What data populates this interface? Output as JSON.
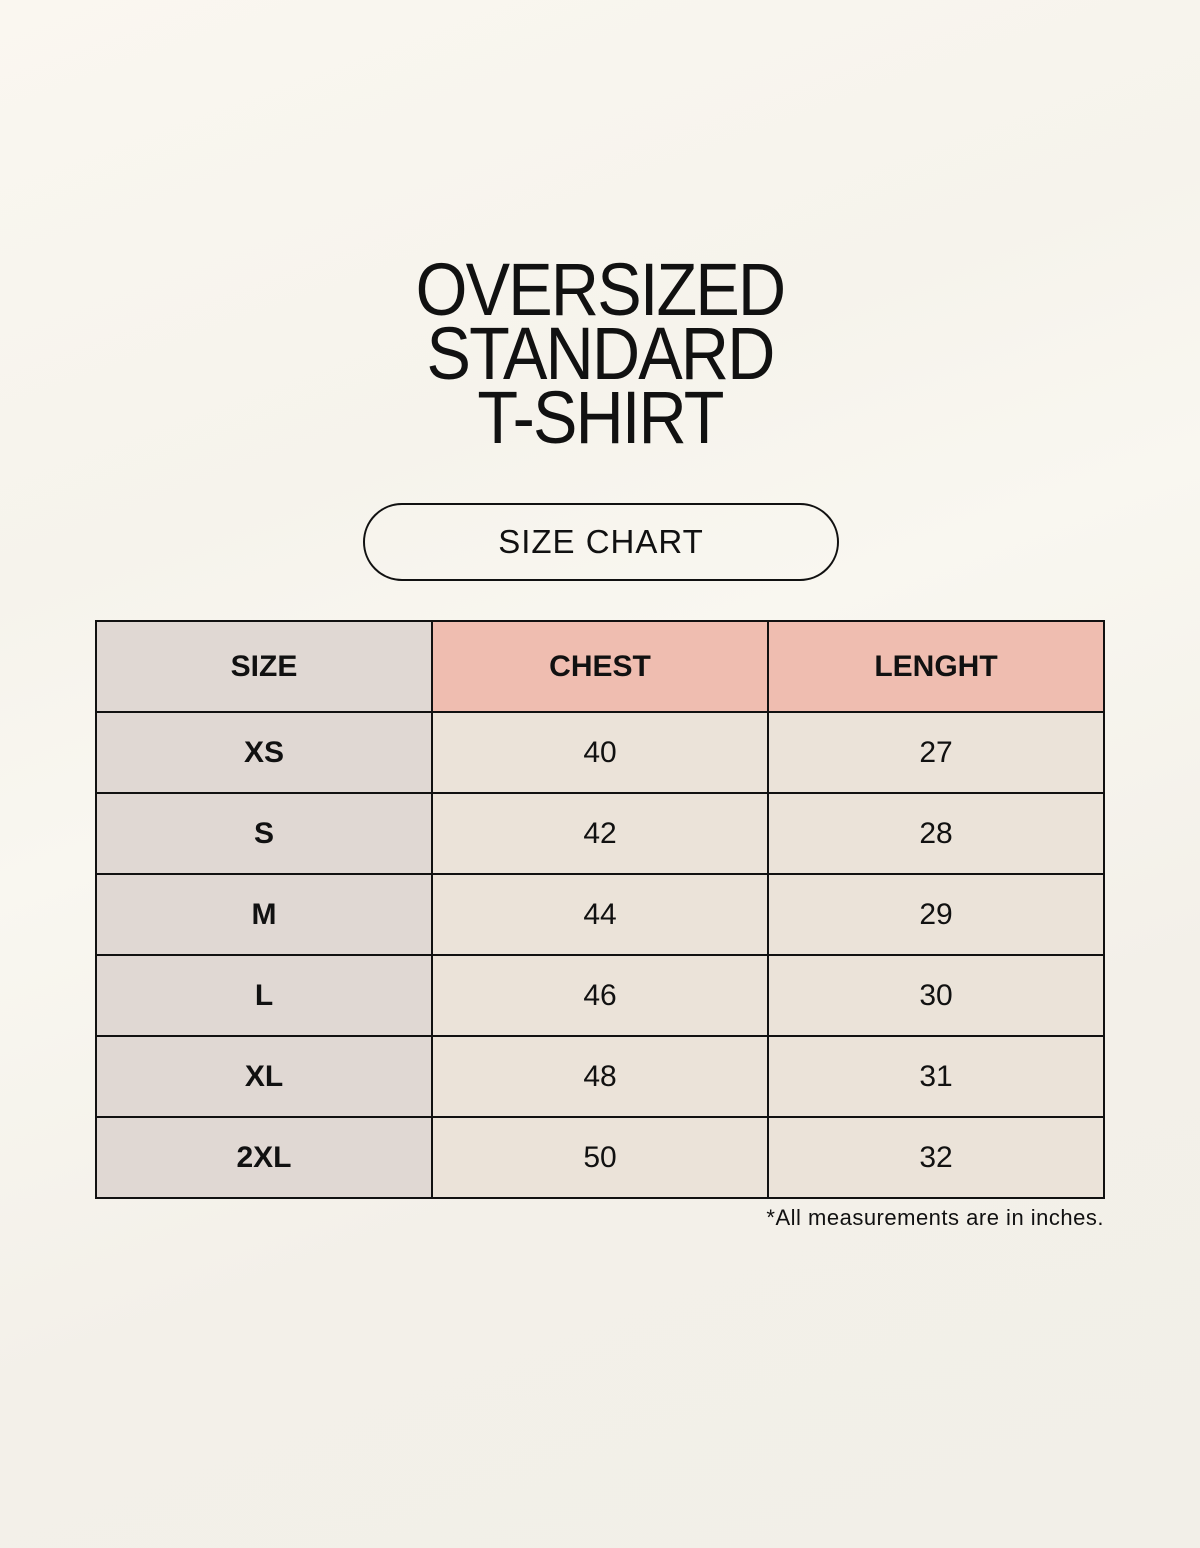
{
  "title": [
    "OVERSIZED",
    "STANDARD",
    "T-SHIRT"
  ],
  "subtitle": "SIZE CHART",
  "colors": {
    "size_column": "#e0d8d3",
    "header_accent": "#efbdb0",
    "data_cells": "#ebe3d9",
    "background": "#f8f6ef"
  },
  "table": {
    "headers": [
      "SIZE",
      "CHEST",
      "LENGHT"
    ],
    "rows": [
      [
        "XS",
        "40",
        "27"
      ],
      [
        "S",
        "42",
        "28"
      ],
      [
        "M",
        "44",
        "29"
      ],
      [
        "L",
        "46",
        "30"
      ],
      [
        "XL",
        "48",
        "31"
      ],
      [
        "2XL",
        "50",
        "32"
      ]
    ]
  },
  "note": "*All measurements are in inches."
}
